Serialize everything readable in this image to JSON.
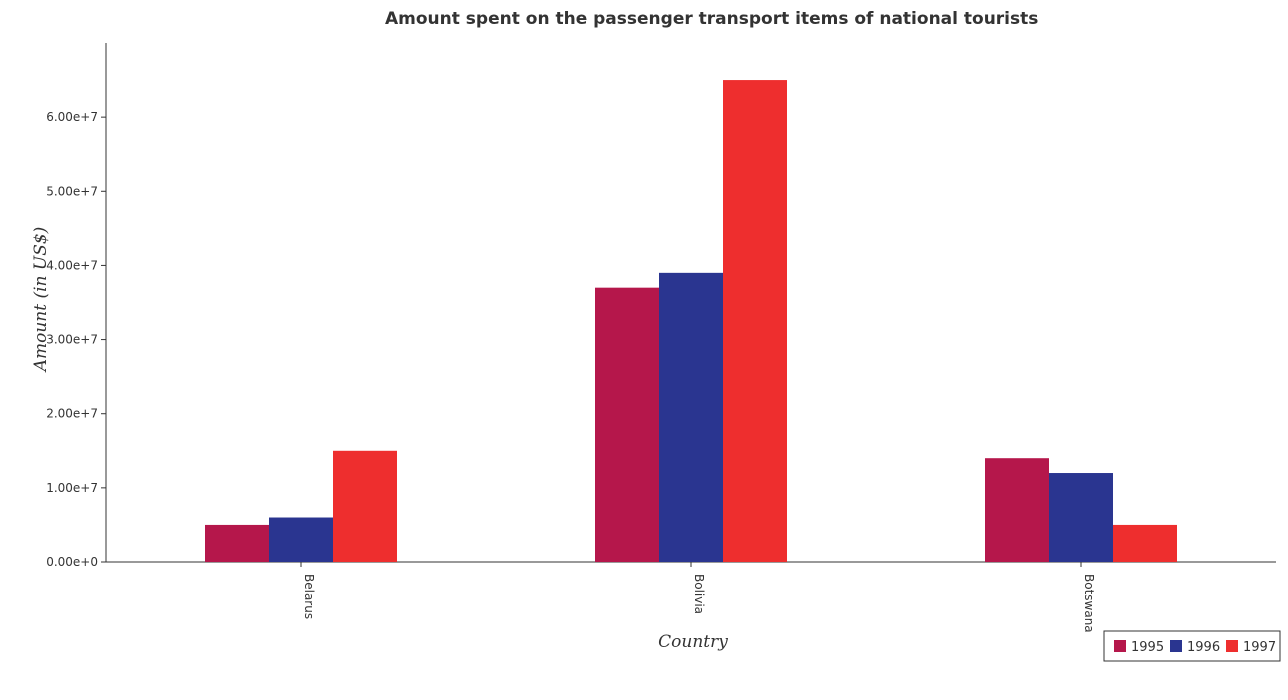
{
  "chart_data": {
    "type": "bar",
    "title": "Amount spent on the passenger transport items of national tourists",
    "xlabel": "Country",
    "ylabel": "Amount (in US$)",
    "categories": [
      "Belarus",
      "Bolivia",
      "Botswana"
    ],
    "series": [
      {
        "name": "1995",
        "color": "#b5174b",
        "values": [
          5000000,
          37000000,
          14000000
        ]
      },
      {
        "name": "1996",
        "color": "#2a3590",
        "values": [
          6000000,
          39000000,
          12000000
        ]
      },
      {
        "name": "1997",
        "color": "#ee2e2e",
        "values": [
          15000000,
          65000000,
          5000000
        ]
      }
    ],
    "ylim": [
      0,
      70000000
    ],
    "yticks": [
      0,
      10000000,
      20000000,
      30000000,
      40000000,
      50000000,
      60000000
    ],
    "ytick_labels": [
      "0.00e+0",
      "1.00e+7",
      "2.00e+7",
      "3.00e+7",
      "4.00e+7",
      "5.00e+7",
      "6.00e+7"
    ],
    "grid": false,
    "legend_position": "bottom-right"
  }
}
